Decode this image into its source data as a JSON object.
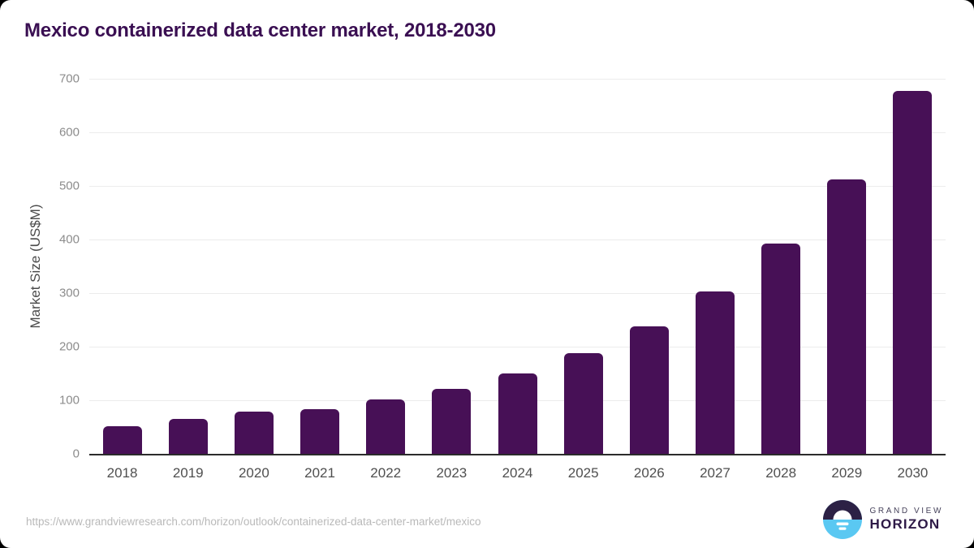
{
  "title": "Mexico containerized data center market, 2018-2030",
  "chart_data": {
    "type": "bar",
    "categories": [
      "2018",
      "2019",
      "2020",
      "2021",
      "2022",
      "2023",
      "2024",
      "2025",
      "2026",
      "2027",
      "2028",
      "2029",
      "2030"
    ],
    "values": [
      52,
      65,
      79,
      84,
      101,
      121,
      150,
      188,
      238,
      303,
      392,
      512,
      677
    ],
    "title": "Mexico containerized data center market, 2018-2030",
    "xlabel": "",
    "ylabel": "Market Size (US$M)",
    "ylim": [
      0,
      700
    ],
    "yticks": [
      0,
      100,
      200,
      300,
      400,
      500,
      600,
      700
    ],
    "grid": true,
    "legend": "none",
    "bar_color": "#471056"
  },
  "footer": {
    "source_url": "https://www.grandviewresearch.com/horizon/outlook/containerized-data-center-market/mexico",
    "logo": {
      "top": "GRAND VIEW",
      "bottom": "HORIZON"
    }
  },
  "colors": {
    "bar": "#471056",
    "title_text": "#3a0f52",
    "gridline": "#ececec",
    "axis_line": "#2b2b2b",
    "y_tick_label": "#8c8c8c",
    "x_tick_label": "#4f4f4f",
    "url_text": "#b9b9b9",
    "logo_blue": "#5ac8f2",
    "logo_dark": "#2c2145"
  }
}
